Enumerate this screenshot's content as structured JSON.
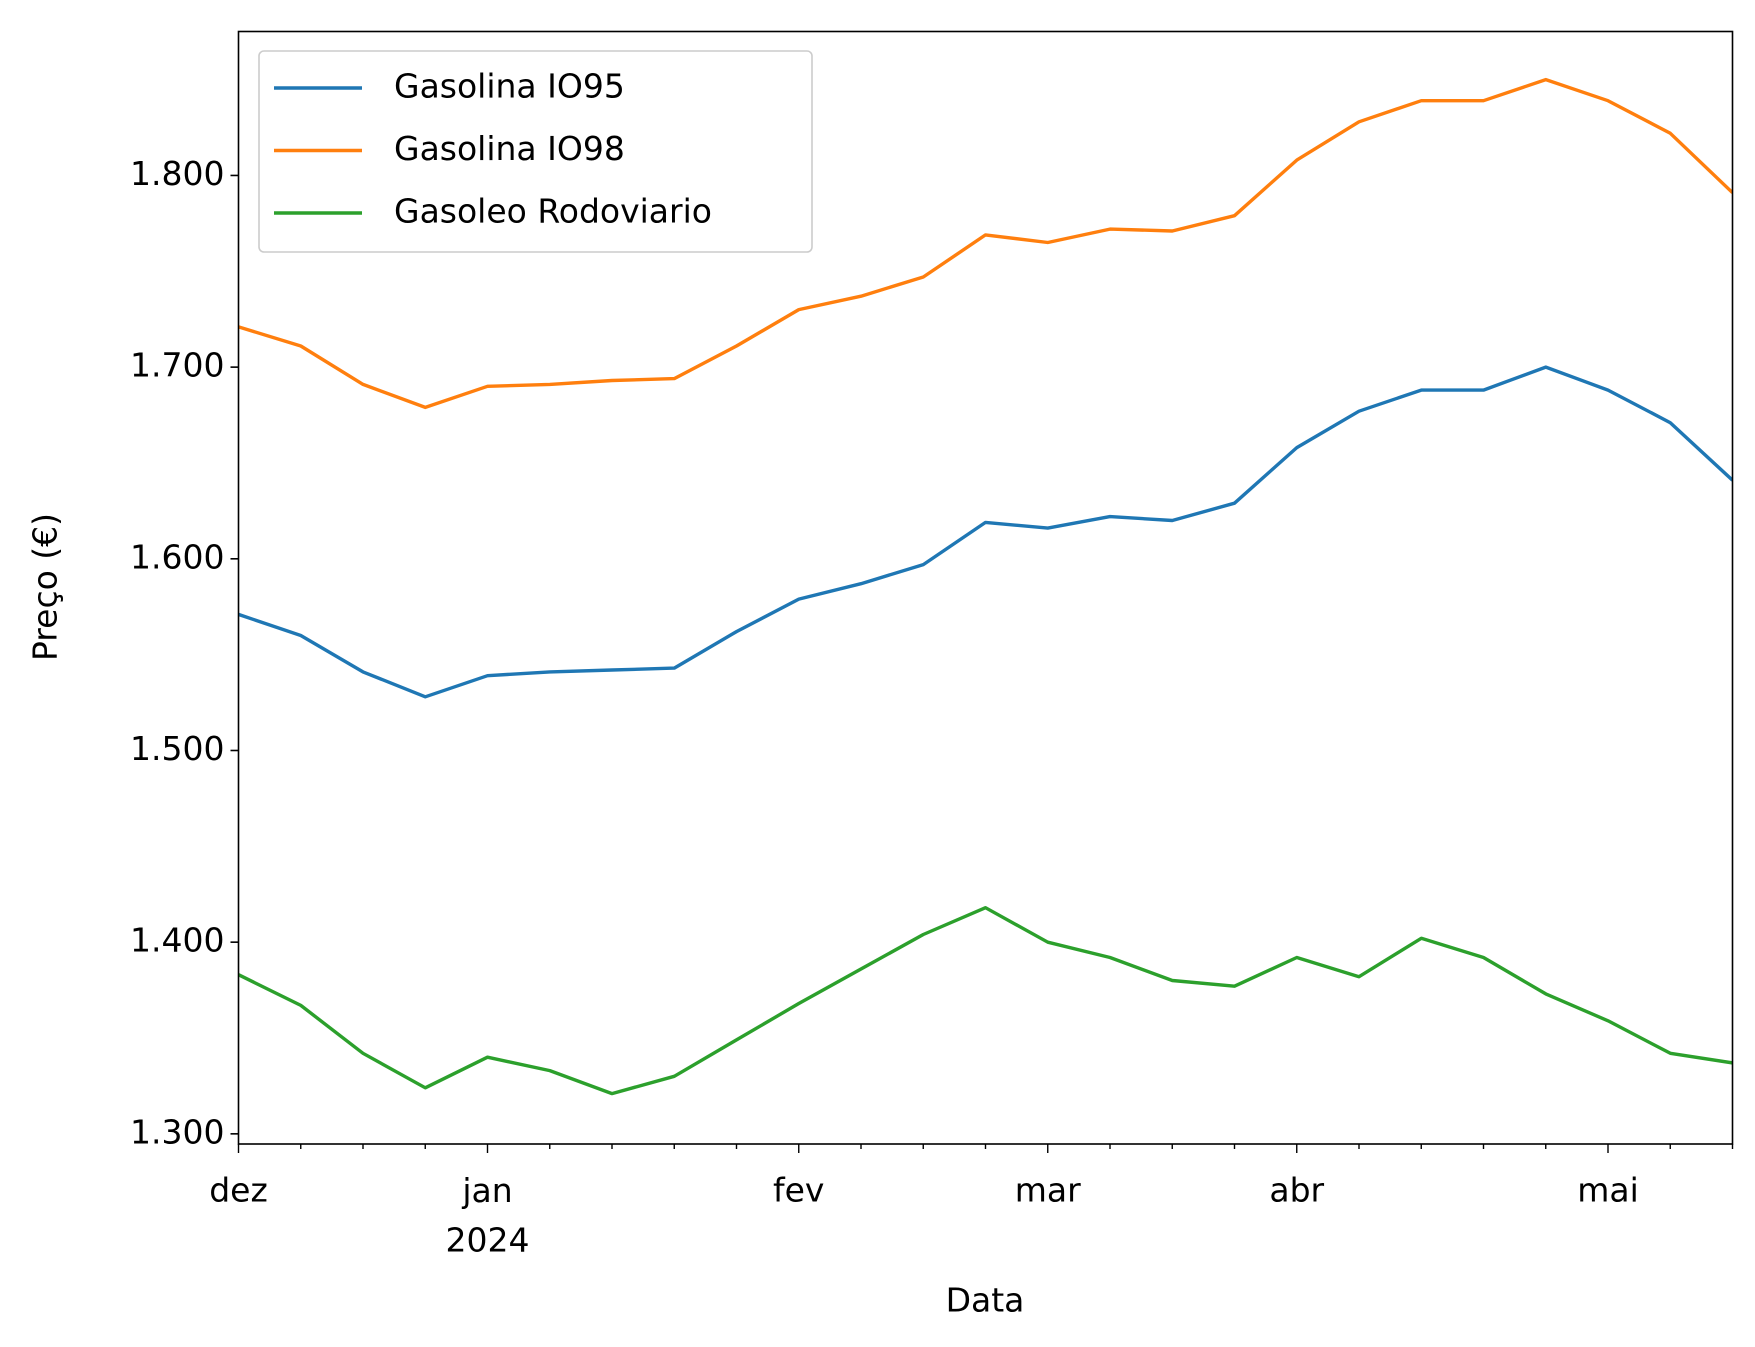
{
  "chart_data": {
    "type": "line",
    "x_label": "Data",
    "y_label": "Preço (€)",
    "categories": [
      "dez",
      null,
      null,
      null,
      "jan\n2024",
      null,
      null,
      null,
      null,
      "fev",
      null,
      null,
      null,
      "mar",
      null,
      null,
      null,
      "abr",
      null,
      null,
      null,
      null,
      "mai",
      null,
      null
    ],
    "series": [
      {
        "name": "Gasolina IO95",
        "color": "#1f77b4",
        "values": [
          1.571,
          1.56,
          1.541,
          1.528,
          1.539,
          1.541,
          1.542,
          1.543,
          1.562,
          1.579,
          1.587,
          1.597,
          1.619,
          1.616,
          1.622,
          1.62,
          1.629,
          1.658,
          1.677,
          1.688,
          1.688,
          1.7,
          1.688,
          1.671,
          1.641
        ]
      },
      {
        "name": "Gasolina IO98",
        "color": "#ff7f0e",
        "values": [
          1.721,
          1.711,
          1.691,
          1.679,
          1.69,
          1.691,
          1.693,
          1.694,
          1.711,
          1.73,
          1.737,
          1.747,
          1.769,
          1.765,
          1.772,
          1.771,
          1.779,
          1.808,
          1.828,
          1.839,
          1.839,
          1.85,
          1.839,
          1.822,
          1.791
        ]
      },
      {
        "name": "Gasoleo Rodoviario",
        "color": "#2ca02c",
        "values": [
          1.383,
          1.367,
          1.342,
          1.324,
          1.34,
          1.333,
          1.321,
          1.33,
          1.349,
          1.368,
          1.386,
          1.404,
          1.418,
          1.4,
          1.392,
          1.38,
          1.377,
          1.392,
          1.382,
          1.402,
          1.392,
          1.373,
          1.359,
          1.342,
          1.337
        ]
      }
    ],
    "ylim": [
      1.2947,
      1.8751
    ],
    "yticks": [
      {
        "value": 1.3,
        "label": "1.300"
      },
      {
        "value": 1.4,
        "label": "1.400"
      },
      {
        "value": 1.5,
        "label": "1.500"
      },
      {
        "value": 1.6,
        "label": "1.600"
      },
      {
        "value": 1.7,
        "label": "1.700"
      },
      {
        "value": 1.8,
        "label": "1.800"
      }
    ],
    "grid": false,
    "legend": "upper left"
  }
}
